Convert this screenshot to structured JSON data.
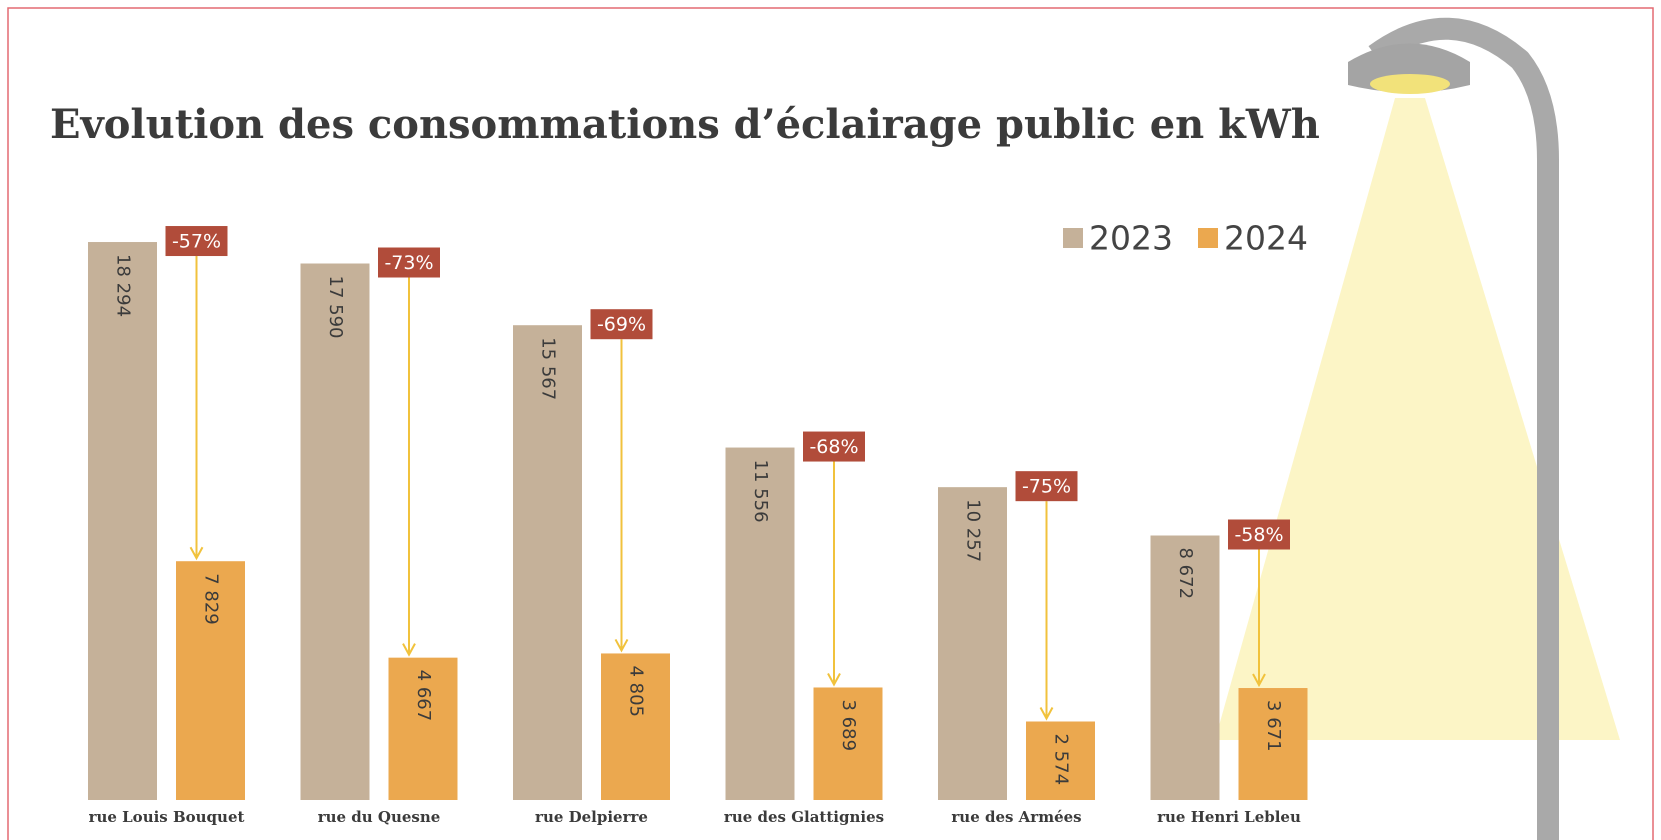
{
  "chart_data": {
    "type": "bar",
    "title": "Evolution des consommations d’éclairage public en kWh",
    "categories": [
      "rue Louis Bouquet",
      "rue du Quesne",
      "rue Delpierre",
      "rue des Glattignies",
      "rue des Armées",
      "rue Henri Lebleu"
    ],
    "series": [
      {
        "name": "2023",
        "color": "#c5b199",
        "values": [
          18294,
          17590,
          15567,
          11556,
          10257,
          8672
        ],
        "value_labels": [
          "18 294",
          "17 590",
          "15 567",
          "11 556",
          "10 257",
          "8 672"
        ]
      },
      {
        "name": "2024",
        "color": "#eba84f",
        "values": [
          7829,
          4667,
          4805,
          3689,
          2574,
          3671
        ],
        "value_labels": [
          "7 829",
          "4 667",
          "4 805",
          "3 689",
          "2 574",
          "3 671"
        ]
      }
    ],
    "change_labels": [
      "-57%",
      "-73%",
      "-69%",
      "-68%",
      "-75%",
      "-58%"
    ],
    "ylim": [
      0,
      20000
    ]
  }
}
